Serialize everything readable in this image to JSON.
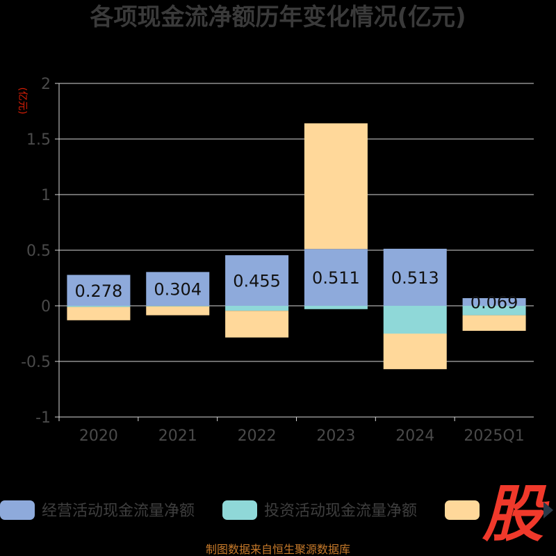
{
  "chart_data": {
    "type": "bar",
    "stacked": true,
    "title": "各项现金流净额历年变化情况(亿元)",
    "yunit": "(亿元)",
    "categories": [
      "2020",
      "2021",
      "2022",
      "2023",
      "2024",
      "2025Q1"
    ],
    "ylim": [
      -1,
      2
    ],
    "yticks": [
      2,
      1.5,
      1,
      0.5,
      0,
      -0.5,
      -1
    ],
    "ytick_labels": [
      "2",
      "1.5",
      "1",
      "0.5",
      "0",
      "-0.5",
      "-1"
    ],
    "grid": true,
    "legend_position": "bottom",
    "series": [
      {
        "name": "经营活动现金流量净额",
        "color": "#8eaadb",
        "values": [
          0.278,
          0.304,
          0.455,
          0.511,
          0.513,
          0.069
        ],
        "labels": [
          "0.278",
          "0.304",
          "0.455",
          "0.511",
          "0.513",
          "0.069"
        ]
      },
      {
        "name": "投资活动现金流量净额",
        "color": "#8fd8d8",
        "values": [
          -0.01,
          -0.005,
          -0.045,
          -0.03,
          -0.25,
          -0.085
        ]
      },
      {
        "name": "",
        "color": "#ffd89a",
        "values": [
          -0.12,
          -0.08,
          -0.24,
          1.13,
          -0.32,
          -0.14
        ]
      }
    ]
  },
  "source": "制图数据来自恒生聚源数据库",
  "logo": {
    "text": "股"
  }
}
